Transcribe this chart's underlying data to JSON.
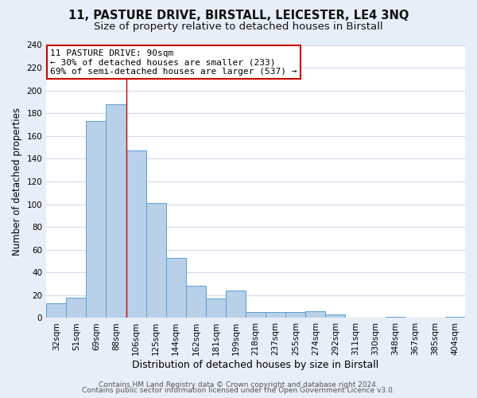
{
  "title1": "11, PASTURE DRIVE, BIRSTALL, LEICESTER, LE4 3NQ",
  "title2": "Size of property relative to detached houses in Birstall",
  "xlabel": "Distribution of detached houses by size in Birstall",
  "ylabel": "Number of detached properties",
  "bins": [
    "32sqm",
    "51sqm",
    "69sqm",
    "88sqm",
    "106sqm",
    "125sqm",
    "144sqm",
    "162sqm",
    "181sqm",
    "199sqm",
    "218sqm",
    "237sqm",
    "255sqm",
    "274sqm",
    "292sqm",
    "311sqm",
    "330sqm",
    "348sqm",
    "367sqm",
    "385sqm",
    "404sqm"
  ],
  "values": [
    13,
    18,
    173,
    188,
    147,
    101,
    53,
    28,
    17,
    24,
    5,
    5,
    5,
    6,
    3,
    0,
    0,
    1,
    0,
    0,
    1
  ],
  "bar_color": "#b8d0e8",
  "bar_edge_color": "#5a9fd4",
  "vline_x_idx": 3,
  "vline_color": "#cc0000",
  "annotation_title": "11 PASTURE DRIVE: 90sqm",
  "annotation_line1": "← 30% of detached houses are smaller (233)",
  "annotation_line2": "69% of semi-detached houses are larger (537) →",
  "annotation_box_edge": "#cc0000",
  "annotation_box_fill": "#ffffff",
  "ylim": [
    0,
    240
  ],
  "yticks": [
    0,
    20,
    40,
    60,
    80,
    100,
    120,
    140,
    160,
    180,
    200,
    220,
    240
  ],
  "footer1": "Contains HM Land Registry data © Crown copyright and database right 2024.",
  "footer2": "Contains public sector information licensed under the Open Government Licence v3.0.",
  "fig_bg_color": "#e8eef8",
  "plot_bg_color": "#ffffff",
  "grid_color": "#d0d8e8",
  "title1_fontsize": 10.5,
  "title2_fontsize": 9.5,
  "xlabel_fontsize": 9,
  "ylabel_fontsize": 8.5,
  "tick_fontsize": 7.5,
  "footer_fontsize": 6.5
}
